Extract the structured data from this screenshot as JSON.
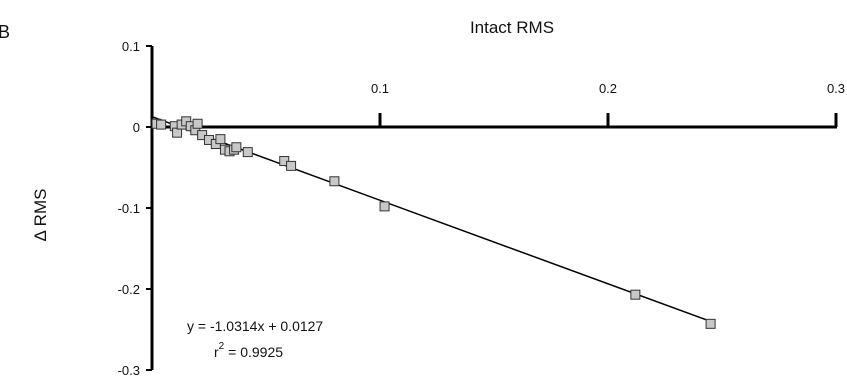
{
  "panel_label": "B",
  "chart_data": {
    "type": "scatter",
    "title": "",
    "xlabel": "Intact RMS",
    "ylabel": "Δ RMS",
    "xlim": [
      0,
      0.3
    ],
    "ylim": [
      -0.3,
      0.1
    ],
    "x_ticks": [
      0.1,
      0.2,
      0.3
    ],
    "x_tick_labels": [
      "0.1",
      "0.2",
      "0.3"
    ],
    "y_ticks": [
      0.1,
      0,
      -0.1,
      -0.2,
      -0.3
    ],
    "y_tick_labels": [
      "0.1",
      "0",
      "-0.1",
      "-0.2",
      "-0.3"
    ],
    "grid": false,
    "marker_color": "#c8c8c8",
    "marker_edge": "#333333",
    "points": [
      {
        "x": 0.002,
        "y": 0.004
      },
      {
        "x": 0.004,
        "y": 0.003
      },
      {
        "x": 0.01,
        "y": 0.001
      },
      {
        "x": 0.011,
        "y": -0.007
      },
      {
        "x": 0.013,
        "y": 0.003
      },
      {
        "x": 0.015,
        "y": 0.007
      },
      {
        "x": 0.017,
        "y": 0.001
      },
      {
        "x": 0.019,
        "y": -0.004
      },
      {
        "x": 0.02,
        "y": 0.004
      },
      {
        "x": 0.022,
        "y": -0.01
      },
      {
        "x": 0.025,
        "y": -0.016
      },
      {
        "x": 0.028,
        "y": -0.021
      },
      {
        "x": 0.03,
        "y": -0.015
      },
      {
        "x": 0.032,
        "y": -0.028
      },
      {
        "x": 0.034,
        "y": -0.03
      },
      {
        "x": 0.036,
        "y": -0.028
      },
      {
        "x": 0.037,
        "y": -0.025
      },
      {
        "x": 0.042,
        "y": -0.031
      },
      {
        "x": 0.058,
        "y": -0.042
      },
      {
        "x": 0.061,
        "y": -0.048
      },
      {
        "x": 0.08,
        "y": -0.067
      },
      {
        "x": 0.102,
        "y": -0.098
      },
      {
        "x": 0.212,
        "y": -0.207
      },
      {
        "x": 0.245,
        "y": -0.243
      }
    ],
    "trendline": {
      "slope": -1.0314,
      "intercept": 0.0127,
      "x_range": [
        0,
        0.247
      ]
    },
    "annotations": [
      "y = -1.0314x + 0.0127",
      "r",
      "2",
      " = 0.9925"
    ]
  }
}
